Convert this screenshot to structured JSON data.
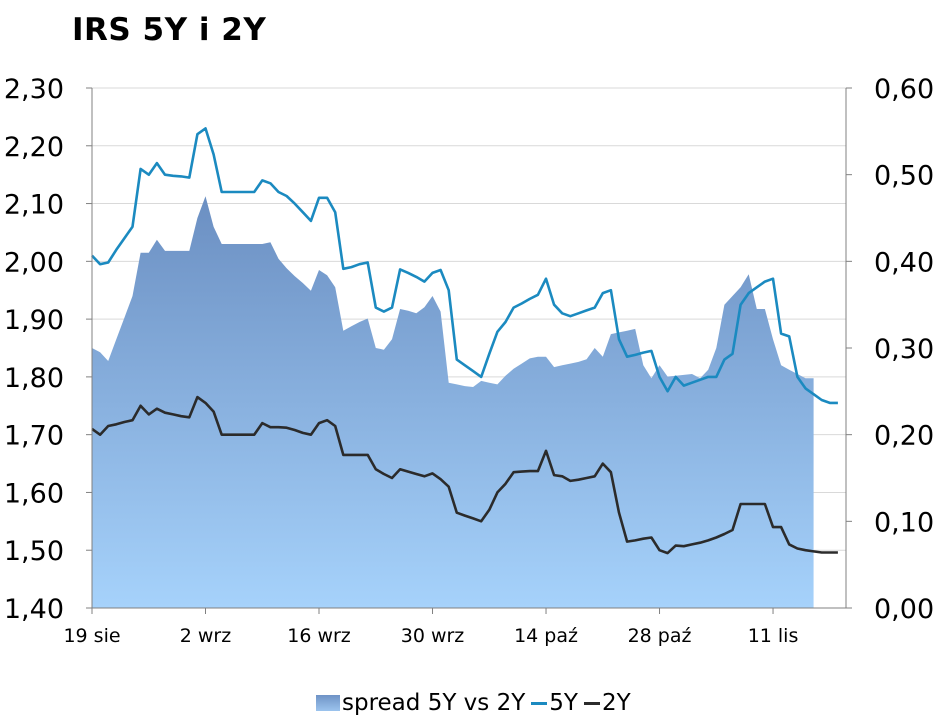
{
  "title": "IRS 5Y i 2Y",
  "colors": {
    "line_5y": "#1b8ac0",
    "line_2y": "#2b2b2b",
    "area_top": "#6b8fc2",
    "area_bottom": "#a6d2fb",
    "axis": "#808080",
    "grid": "#d9d9d9"
  },
  "chart_data": {
    "type": "line",
    "title": "IRS 5Y i 2Y",
    "left_axis": {
      "ylim": [
        1.4,
        2.3
      ],
      "ticks": [
        "1,40",
        "1,50",
        "1,60",
        "1,70",
        "1,80",
        "1,90",
        "2,00",
        "2,10",
        "2,20",
        "2,30"
      ]
    },
    "right_axis": {
      "ylim": [
        0.0,
        0.6
      ],
      "ticks": [
        "0,00",
        "0,10",
        "0,20",
        "0,30",
        "0,40",
        "0,50",
        "0,60"
      ]
    },
    "x_ticks": [
      {
        "label": "19 sie",
        "day": 0
      },
      {
        "label": "2 wrz",
        "day": 14
      },
      {
        "label": "16 wrz",
        "day": 28
      },
      {
        "label": "30 wrz",
        "day": 42
      },
      {
        "label": "14 paź",
        "day": 56
      },
      {
        "label": "28 paź",
        "day": 70
      },
      {
        "label": "11 lis",
        "day": 84
      }
    ],
    "x_range_days": [
      0,
      90
    ],
    "grid": true,
    "legend": "bottom",
    "series": [
      {
        "name": "spread 5Y vs 2Y",
        "type": "area",
        "axis": "right",
        "points": [
          [
            0,
            0.3
          ],
          [
            1,
            0.295
          ],
          [
            2,
            0.285
          ],
          [
            3,
            0.31
          ],
          [
            4,
            0.335
          ],
          [
            5,
            0.36
          ],
          [
            6,
            0.41
          ],
          [
            7,
            0.41
          ],
          [
            8,
            0.425
          ],
          [
            9,
            0.412
          ],
          [
            10,
            0.412
          ],
          [
            11,
            0.412
          ],
          [
            12,
            0.412
          ],
          [
            13,
            0.45
          ],
          [
            14,
            0.475
          ],
          [
            15,
            0.44
          ],
          [
            16,
            0.42
          ],
          [
            17,
            0.42
          ],
          [
            18,
            0.42
          ],
          [
            19,
            0.42
          ],
          [
            20,
            0.42
          ],
          [
            21,
            0.42
          ],
          [
            22,
            0.422
          ],
          [
            23,
            0.403
          ],
          [
            24,
            0.392
          ],
          [
            25,
            0.383
          ],
          [
            26,
            0.375
          ],
          [
            27,
            0.366
          ],
          [
            28,
            0.39
          ],
          [
            29,
            0.384
          ],
          [
            30,
            0.37
          ],
          [
            31,
            0.32
          ],
          [
            32,
            0.325
          ],
          [
            33,
            0.33
          ],
          [
            34,
            0.334
          ],
          [
            35,
            0.3
          ],
          [
            36,
            0.298
          ],
          [
            37,
            0.31
          ],
          [
            38,
            0.345
          ],
          [
            39,
            0.343
          ],
          [
            40,
            0.34
          ],
          [
            41,
            0.347
          ],
          [
            42,
            0.36
          ],
          [
            43,
            0.342
          ],
          [
            44,
            0.26
          ],
          [
            45,
            0.258
          ],
          [
            46,
            0.256
          ],
          [
            47,
            0.255
          ],
          [
            48,
            0.262
          ],
          [
            49,
            0.26
          ],
          [
            50,
            0.258
          ],
          [
            51,
            0.268
          ],
          [
            52,
            0.276
          ],
          [
            53,
            0.282
          ],
          [
            54,
            0.288
          ],
          [
            55,
            0.29
          ],
          [
            56,
            0.29
          ],
          [
            57,
            0.278
          ],
          [
            58,
            0.28
          ],
          [
            59,
            0.282
          ],
          [
            60,
            0.284
          ],
          [
            61,
            0.287
          ],
          [
            62,
            0.3
          ],
          [
            63,
            0.29
          ],
          [
            64,
            0.316
          ],
          [
            65,
            0.318
          ],
          [
            66,
            0.32
          ],
          [
            67,
            0.322
          ],
          [
            68,
            0.28
          ],
          [
            69,
            0.265
          ],
          [
            70,
            0.28
          ],
          [
            71,
            0.267
          ],
          [
            72,
            0.268
          ],
          [
            73,
            0.269
          ],
          [
            74,
            0.27
          ],
          [
            75,
            0.265
          ],
          [
            76,
            0.275
          ],
          [
            77,
            0.3
          ],
          [
            78,
            0.35
          ],
          [
            79,
            0.36
          ],
          [
            80,
            0.37
          ],
          [
            81,
            0.385
          ],
          [
            82,
            0.345
          ],
          [
            83,
            0.345
          ],
          [
            84,
            0.31
          ],
          [
            85,
            0.28
          ],
          [
            86,
            0.275
          ],
          [
            87,
            0.27
          ],
          [
            88,
            0.265
          ],
          [
            89,
            0.265
          ]
        ]
      },
      {
        "name": "5Y",
        "type": "line",
        "axis": "left",
        "points": [
          [
            0,
            2.01
          ],
          [
            1,
            1.995
          ],
          [
            2,
            1.998
          ],
          [
            3,
            2.02
          ],
          [
            4,
            2.04
          ],
          [
            5,
            2.06
          ],
          [
            6,
            2.16
          ],
          [
            7,
            2.15
          ],
          [
            8,
            2.17
          ],
          [
            9,
            2.15
          ],
          [
            10,
            2.148
          ],
          [
            11,
            2.147
          ],
          [
            12,
            2.145
          ],
          [
            13,
            2.22
          ],
          [
            14,
            2.23
          ],
          [
            15,
            2.185
          ],
          [
            16,
            2.12
          ],
          [
            17,
            2.12
          ],
          [
            18,
            2.12
          ],
          [
            19,
            2.12
          ],
          [
            20,
            2.12
          ],
          [
            21,
            2.14
          ],
          [
            22,
            2.135
          ],
          [
            23,
            2.12
          ],
          [
            24,
            2.113
          ],
          [
            25,
            2.1
          ],
          [
            26,
            2.085
          ],
          [
            27,
            2.07
          ],
          [
            28,
            2.11
          ],
          [
            29,
            2.11
          ],
          [
            30,
            2.085
          ],
          [
            31,
            1.987
          ],
          [
            32,
            1.99
          ],
          [
            33,
            1.995
          ],
          [
            34,
            1.998
          ],
          [
            35,
            1.92
          ],
          [
            36,
            1.913
          ],
          [
            37,
            1.92
          ],
          [
            38,
            1.986
          ],
          [
            39,
            1.98
          ],
          [
            40,
            1.973
          ],
          [
            41,
            1.965
          ],
          [
            42,
            1.98
          ],
          [
            43,
            1.985
          ],
          [
            44,
            1.95
          ],
          [
            45,
            1.83
          ],
          [
            46,
            1.82
          ],
          [
            47,
            1.81
          ],
          [
            48,
            1.8
          ],
          [
            49,
            1.84
          ],
          [
            50,
            1.878
          ],
          [
            51,
            1.895
          ],
          [
            52,
            1.92
          ],
          [
            53,
            1.927
          ],
          [
            54,
            1.935
          ],
          [
            55,
            1.942
          ],
          [
            56,
            1.97
          ],
          [
            57,
            1.925
          ],
          [
            58,
            1.91
          ],
          [
            59,
            1.905
          ],
          [
            60,
            1.91
          ],
          [
            61,
            1.915
          ],
          [
            62,
            1.92
          ],
          [
            63,
            1.945
          ],
          [
            64,
            1.95
          ],
          [
            65,
            1.865
          ],
          [
            66,
            1.835
          ],
          [
            67,
            1.838
          ],
          [
            68,
            1.842
          ],
          [
            69,
            1.845
          ],
          [
            70,
            1.8
          ],
          [
            71,
            1.775
          ],
          [
            72,
            1.8
          ],
          [
            73,
            1.785
          ],
          [
            74,
            1.79
          ],
          [
            75,
            1.795
          ],
          [
            76,
            1.8
          ],
          [
            77,
            1.8
          ],
          [
            78,
            1.83
          ],
          [
            79,
            1.84
          ],
          [
            80,
            1.925
          ],
          [
            81,
            1.945
          ],
          [
            82,
            1.955
          ],
          [
            83,
            1.965
          ],
          [
            84,
            1.97
          ],
          [
            85,
            1.875
          ],
          [
            86,
            1.87
          ],
          [
            87,
            1.8
          ],
          [
            88,
            1.78
          ],
          [
            89,
            1.77
          ],
          [
            90,
            1.76
          ],
          [
            91,
            1.755
          ],
          [
            92,
            1.755
          ]
        ]
      },
      {
        "name": "2Y",
        "type": "line",
        "axis": "left",
        "points": [
          [
            0,
            1.71
          ],
          [
            1,
            1.7
          ],
          [
            2,
            1.715
          ],
          [
            3,
            1.718
          ],
          [
            4,
            1.722
          ],
          [
            5,
            1.725
          ],
          [
            6,
            1.75
          ],
          [
            7,
            1.735
          ],
          [
            8,
            1.745
          ],
          [
            9,
            1.738
          ],
          [
            10,
            1.735
          ],
          [
            11,
            1.732
          ],
          [
            12,
            1.73
          ],
          [
            13,
            1.765
          ],
          [
            14,
            1.755
          ],
          [
            15,
            1.74
          ],
          [
            16,
            1.7
          ],
          [
            17,
            1.7
          ],
          [
            18,
            1.7
          ],
          [
            19,
            1.7
          ],
          [
            20,
            1.7
          ],
          [
            21,
            1.72
          ],
          [
            22,
            1.713
          ],
          [
            23,
            1.713
          ],
          [
            24,
            1.712
          ],
          [
            25,
            1.708
          ],
          [
            26,
            1.703
          ],
          [
            27,
            1.7
          ],
          [
            28,
            1.72
          ],
          [
            29,
            1.725
          ],
          [
            30,
            1.715
          ],
          [
            31,
            1.665
          ],
          [
            32,
            1.665
          ],
          [
            33,
            1.665
          ],
          [
            34,
            1.665
          ],
          [
            35,
            1.64
          ],
          [
            36,
            1.632
          ],
          [
            37,
            1.625
          ],
          [
            38,
            1.64
          ],
          [
            39,
            1.636
          ],
          [
            40,
            1.632
          ],
          [
            41,
            1.628
          ],
          [
            42,
            1.633
          ],
          [
            43,
            1.623
          ],
          [
            44,
            1.61
          ],
          [
            45,
            1.565
          ],
          [
            46,
            1.56
          ],
          [
            47,
            1.555
          ],
          [
            48,
            1.55
          ],
          [
            49,
            1.57
          ],
          [
            50,
            1.6
          ],
          [
            51,
            1.615
          ],
          [
            52,
            1.635
          ],
          [
            53,
            1.636
          ],
          [
            54,
            1.637
          ],
          [
            55,
            1.637
          ],
          [
            56,
            1.672
          ],
          [
            57,
            1.63
          ],
          [
            58,
            1.628
          ],
          [
            59,
            1.62
          ],
          [
            60,
            1.622
          ],
          [
            61,
            1.625
          ],
          [
            62,
            1.628
          ],
          [
            63,
            1.65
          ],
          [
            64,
            1.635
          ],
          [
            65,
            1.565
          ],
          [
            66,
            1.515
          ],
          [
            67,
            1.517
          ],
          [
            68,
            1.52
          ],
          [
            69,
            1.522
          ],
          [
            70,
            1.5
          ],
          [
            71,
            1.495
          ],
          [
            72,
            1.508
          ],
          [
            73,
            1.507
          ],
          [
            74,
            1.51
          ],
          [
            75,
            1.513
          ],
          [
            76,
            1.517
          ],
          [
            77,
            1.522
          ],
          [
            78,
            1.528
          ],
          [
            79,
            1.535
          ],
          [
            80,
            1.58
          ],
          [
            81,
            1.58
          ],
          [
            82,
            1.58
          ],
          [
            83,
            1.58
          ],
          [
            84,
            1.54
          ],
          [
            85,
            1.54
          ],
          [
            86,
            1.51
          ],
          [
            87,
            1.503
          ],
          [
            88,
            1.5
          ],
          [
            89,
            1.498
          ],
          [
            90,
            1.496
          ],
          [
            91,
            1.496
          ],
          [
            92,
            1.496
          ]
        ]
      }
    ]
  },
  "legend": {
    "items": [
      "spread 5Y vs 2Y",
      "5Y",
      "2Y"
    ]
  }
}
